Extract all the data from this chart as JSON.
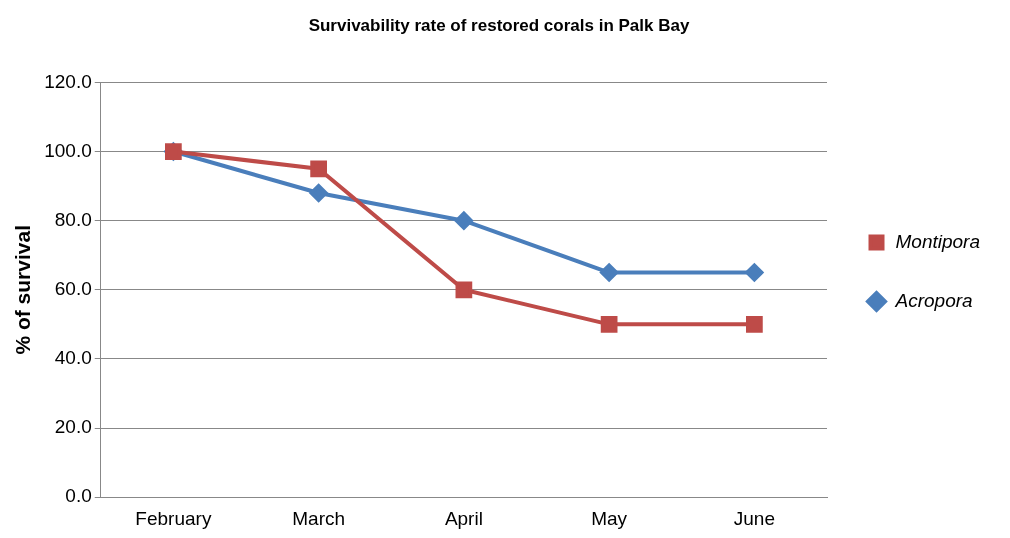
{
  "chart_data": {
    "type": "line",
    "title": "Survivability rate of restored corals in Palk Bay",
    "ylabel": "% of survival",
    "categories": [
      "February",
      "March",
      "April",
      "May",
      "June"
    ],
    "series": [
      {
        "name": "Acropora",
        "color": "#4a7ebb",
        "marker": "diamond",
        "values": [
          100,
          88,
          80,
          65,
          65
        ]
      },
      {
        "name": "Montipora",
        "color": "#be4b48",
        "marker": "square",
        "values": [
          100,
          95,
          60,
          50,
          50
        ]
      }
    ],
    "ylim": [
      0,
      120
    ],
    "yticks": [
      {
        "value": 0,
        "label": "0.0"
      },
      {
        "value": 20,
        "label": "20.0"
      },
      {
        "value": 40,
        "label": "40.0"
      },
      {
        "value": 60,
        "label": "60.0"
      },
      {
        "value": 80,
        "label": "80.0"
      },
      {
        "value": 100,
        "label": "100.0"
      },
      {
        "value": 120,
        "label": "120.0"
      }
    ],
    "grid": "y",
    "legend": "right",
    "line_style": "solid"
  }
}
